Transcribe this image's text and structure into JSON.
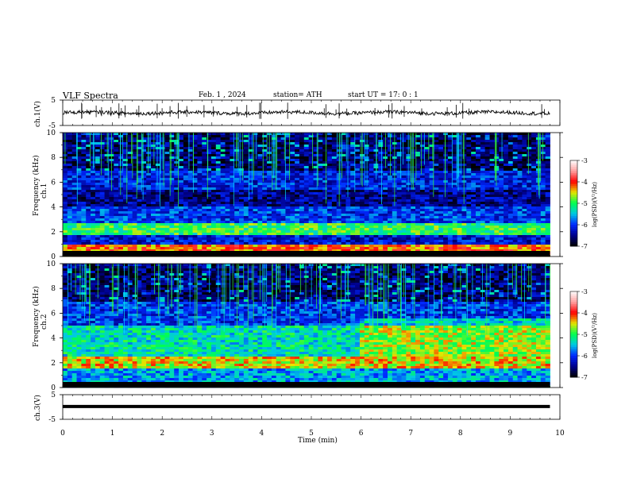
{
  "header": {
    "title": "VLF  Spectra",
    "date": "Feb. 1  , 2024",
    "station": "station= ATH",
    "start": "start  UT  =    17: 0   : 1"
  },
  "colorbar": {
    "label": "log(PSD)(V²/Hz)",
    "ticks": [
      "-3",
      "-4",
      "-5",
      "-6",
      "-7"
    ],
    "colors": [
      "#ffffff",
      "#ff0000",
      "#00ff00",
      "#0000ff",
      "#000000"
    ]
  },
  "chart_data": {
    "type": "heatmap",
    "xlabel": "Time  (min)",
    "xlim": [
      0,
      10
    ],
    "xticks": [
      "0",
      "1",
      "2",
      "3",
      "4",
      "5",
      "6",
      "7",
      "8",
      "9",
      "10"
    ],
    "data_end_min": 9.8,
    "panels": [
      {
        "kind": "line",
        "ylabel": "ch.1(V)",
        "ylim": [
          -5,
          5
        ],
        "yticks": [
          "5",
          "-5"
        ],
        "baseline_v": 0
      },
      {
        "kind": "spectrogram",
        "ylabel_channel": "ch.1",
        "ylabel": "Frequency  (kHz)",
        "ylim": [
          0,
          10
        ],
        "yticks": [
          "10",
          "8",
          "6",
          "4",
          "2",
          "0"
        ],
        "bands": [
          {
            "f_from": 0,
            "f_to": 1,
            "level": -4.2
          },
          {
            "f_from": 1,
            "f_to": 1.8,
            "level": -6.2
          },
          {
            "f_from": 1.8,
            "f_to": 2.6,
            "level": -5.0
          },
          {
            "f_from": 2.6,
            "f_to": 4,
            "level": -6.0
          },
          {
            "f_from": 4,
            "f_to": 5.3,
            "level": -6.5
          },
          {
            "f_from": 5.3,
            "f_to": 7,
            "level": -6.1
          },
          {
            "f_from": 7,
            "f_to": 10,
            "level": -6.6
          }
        ]
      },
      {
        "kind": "spectrogram",
        "ylabel_channel": "ch.2",
        "ylabel": "Frequency  (kHz)",
        "ylim": [
          0,
          10
        ],
        "yticks": [
          "10",
          "8",
          "6",
          "4",
          "2",
          "0"
        ],
        "bands": [
          {
            "f_from": 0,
            "f_to": 1.5,
            "level": -5.6
          },
          {
            "f_from": 1.5,
            "f_to": 2.5,
            "level": -4.5
          },
          {
            "f_from": 2.5,
            "f_to": 5,
            "level": -5.3
          },
          {
            "f_from": 5,
            "f_to": 7,
            "level": -6.0
          },
          {
            "f_from": 7,
            "f_to": 10,
            "level": -6.6
          }
        ]
      },
      {
        "kind": "line",
        "ylabel": "ch.3(V)",
        "ylim": [
          -5,
          5
        ],
        "yticks": [
          "5",
          "-5"
        ],
        "baseline_v": 0.2
      }
    ]
  }
}
